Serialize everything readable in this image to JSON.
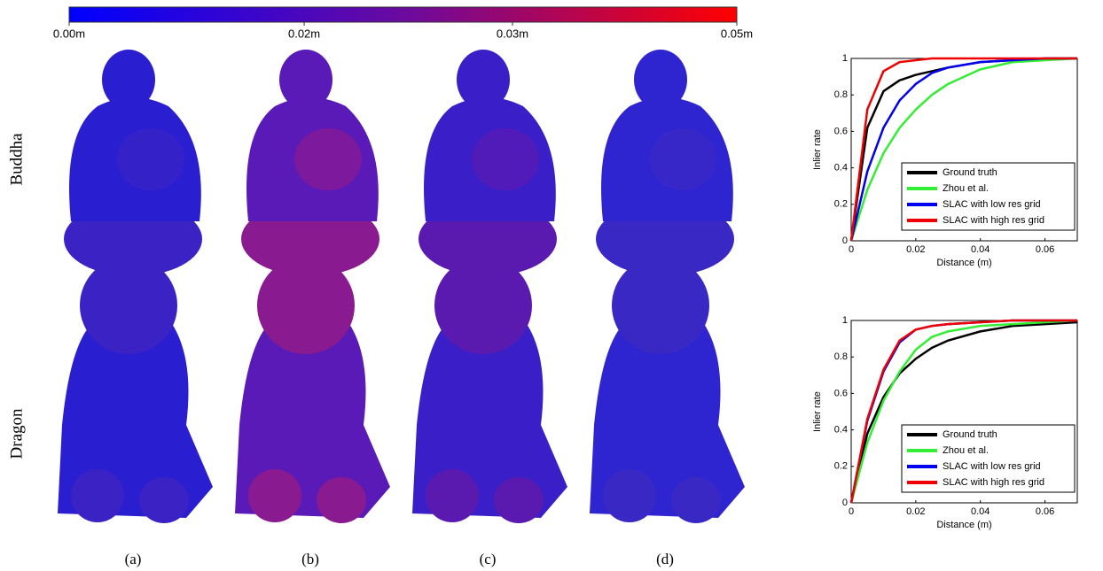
{
  "colorbar": {
    "clim": [
      0,
      0.05
    ],
    "colormap": [
      "#0000ff",
      "#6a0aa0",
      "#ff0000"
    ],
    "ticks": [
      {
        "value": 0,
        "label": "0.00m"
      },
      {
        "value": 0.0176,
        "label": "0.02m"
      },
      {
        "value": 0.0332,
        "label": "0.03m"
      },
      {
        "value": 0.05,
        "label": "0.05m"
      }
    ]
  },
  "row_labels": [
    "Buddha",
    "Dragon"
  ],
  "column_labels": [
    "(a)",
    "(b)",
    "(c)",
    "(d)"
  ],
  "chart_data": [
    {
      "type": "line",
      "xlabel": "Distance (m)",
      "ylabel": "Inlier rate",
      "x": [
        0,
        0.005,
        0.01,
        0.015,
        0.02,
        0.025,
        0.03,
        0.04,
        0.05,
        0.06,
        0.07
      ],
      "xlim": [
        0,
        0.07
      ],
      "ylim": [
        0,
        1
      ],
      "xticks": [
        0,
        0.02,
        0.04,
        0.06
      ],
      "yticks": [
        0,
        0.2,
        0.4,
        0.6,
        0.8,
        1
      ],
      "legend": "lower right",
      "series": [
        {
          "name": "Ground truth",
          "color": "#000000",
          "values": [
            0,
            0.62,
            0.82,
            0.88,
            0.91,
            0.93,
            0.95,
            0.98,
            0.99,
            1,
            1
          ]
        },
        {
          "name": "Zhou et al.",
          "color": "#33ee33",
          "values": [
            0,
            0.28,
            0.48,
            0.62,
            0.72,
            0.8,
            0.86,
            0.94,
            0.98,
            0.99,
            1
          ]
        },
        {
          "name": "SLAC with low res grid",
          "color": "#0000ee",
          "values": [
            0,
            0.38,
            0.62,
            0.77,
            0.86,
            0.92,
            0.95,
            0.98,
            0.99,
            1,
            1
          ]
        },
        {
          "name": "SLAC with high res grid",
          "color": "#ee0000",
          "values": [
            0,
            0.72,
            0.93,
            0.98,
            0.99,
            1,
            1,
            1,
            1,
            1,
            1
          ]
        }
      ]
    },
    {
      "type": "line",
      "xlabel": "Distance (m)",
      "ylabel": "Inlier rate",
      "x": [
        0,
        0.005,
        0.01,
        0.015,
        0.02,
        0.025,
        0.03,
        0.04,
        0.05,
        0.06,
        0.07
      ],
      "xlim": [
        0,
        0.07
      ],
      "ylim": [
        0,
        1
      ],
      "xticks": [
        0,
        0.02,
        0.04,
        0.06
      ],
      "yticks": [
        0,
        0.2,
        0.4,
        0.6,
        0.8,
        1
      ],
      "legend": "lower right",
      "series": [
        {
          "name": "Ground truth",
          "color": "#000000",
          "values": [
            0,
            0.38,
            0.58,
            0.71,
            0.79,
            0.85,
            0.89,
            0.94,
            0.97,
            0.98,
            0.99
          ]
        },
        {
          "name": "Zhou et al.",
          "color": "#33ee33",
          "values": [
            0,
            0.33,
            0.56,
            0.72,
            0.84,
            0.91,
            0.94,
            0.97,
            0.98,
            0.99,
            1
          ]
        },
        {
          "name": "SLAC with low res grid",
          "color": "#0000ee",
          "values": [
            0,
            0.45,
            0.72,
            0.88,
            0.95,
            0.97,
            0.98,
            0.99,
            1,
            1,
            1
          ]
        },
        {
          "name": "SLAC with high res grid",
          "color": "#ee0000",
          "values": [
            0,
            0.46,
            0.73,
            0.89,
            0.95,
            0.97,
            0.98,
            0.99,
            1,
            1,
            1
          ]
        }
      ]
    }
  ]
}
